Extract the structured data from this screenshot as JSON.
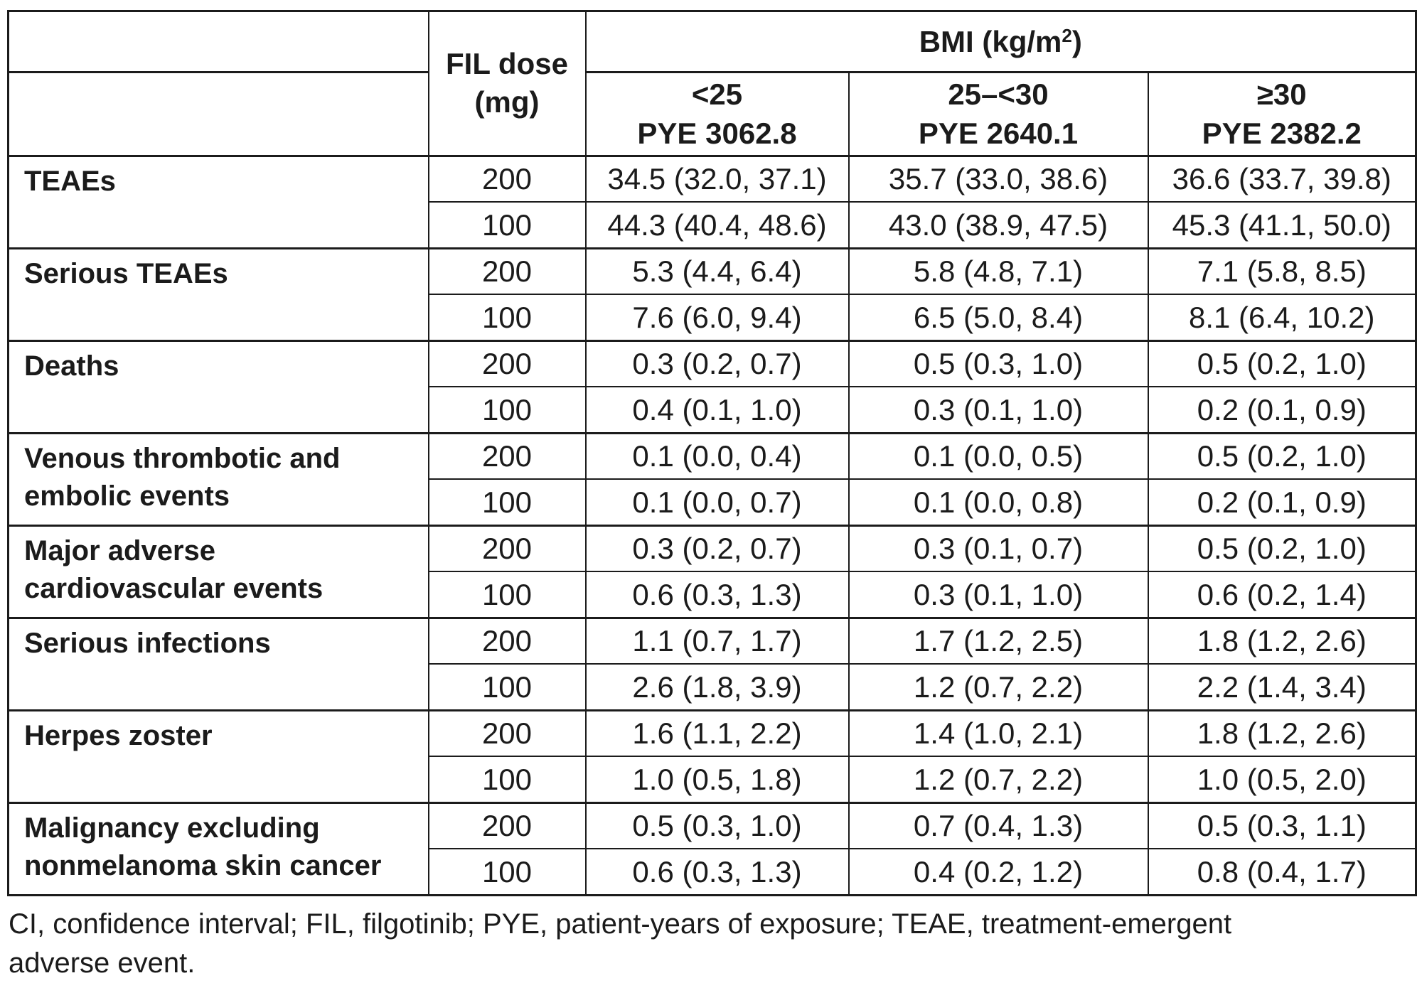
{
  "table": {
    "fil_dose_header": "FIL dose (mg)",
    "bmi_header": {
      "prefix": "BMI (kg/m",
      "sup": "2",
      "suffix": ")"
    },
    "bmi_columns": [
      {
        "range": "<25",
        "pye": "PYE 3062.8"
      },
      {
        "range": "25–<30",
        "pye": "PYE 2640.1"
      },
      {
        "range": "≥30",
        "pye": "PYE 2382.2"
      }
    ],
    "rows": [
      {
        "label": "TEAEs",
        "doses": [
          {
            "dose": "200",
            "values": [
              "34.5 (32.0, 37.1)",
              "35.7 (33.0, 38.6)",
              "36.6 (33.7, 39.8)"
            ]
          },
          {
            "dose": "100",
            "values": [
              "44.3 (40.4, 48.6)",
              "43.0 (38.9, 47.5)",
              "45.3 (41.1, 50.0)"
            ]
          }
        ]
      },
      {
        "label": "Serious TEAEs",
        "doses": [
          {
            "dose": "200",
            "values": [
              "5.3 (4.4, 6.4)",
              "5.8 (4.8, 7.1)",
              "7.1 (5.8, 8.5)"
            ]
          },
          {
            "dose": "100",
            "values": [
              "7.6 (6.0, 9.4)",
              "6.5 (5.0, 8.4)",
              "8.1 (6.4, 10.2)"
            ]
          }
        ]
      },
      {
        "label": "Deaths",
        "doses": [
          {
            "dose": "200",
            "values": [
              "0.3 (0.2, 0.7)",
              "0.5 (0.3, 1.0)",
              "0.5 (0.2, 1.0)"
            ]
          },
          {
            "dose": "100",
            "values": [
              "0.4 (0.1, 1.0)",
              "0.3 (0.1, 1.0)",
              "0.2 (0.1, 0.9)"
            ]
          }
        ]
      },
      {
        "label": "Venous thrombotic and embolic events",
        "doses": [
          {
            "dose": "200",
            "values": [
              "0.1 (0.0, 0.4)",
              "0.1 (0.0, 0.5)",
              "0.5 (0.2, 1.0)"
            ]
          },
          {
            "dose": "100",
            "values": [
              "0.1 (0.0, 0.7)",
              "0.1 (0.0, 0.8)",
              "0.2 (0.1, 0.9)"
            ]
          }
        ]
      },
      {
        "label": "Major adverse cardiovascular events",
        "doses": [
          {
            "dose": "200",
            "values": [
              "0.3 (0.2, 0.7)",
              "0.3 (0.1, 0.7)",
              "0.5 (0.2, 1.0)"
            ]
          },
          {
            "dose": "100",
            "values": [
              "0.6 (0.3, 1.3)",
              "0.3 (0.1, 1.0)",
              "0.6 (0.2, 1.4)"
            ]
          }
        ]
      },
      {
        "label": "Serious infections",
        "doses": [
          {
            "dose": "200",
            "values": [
              "1.1 (0.7, 1.7)",
              "1.7 (1.2, 2.5)",
              "1.8 (1.2, 2.6)"
            ]
          },
          {
            "dose": "100",
            "values": [
              "2.6 (1.8, 3.9)",
              "1.2 (0.7, 2.2)",
              "2.2 (1.4, 3.4)"
            ]
          }
        ]
      },
      {
        "label": "Herpes zoster",
        "doses": [
          {
            "dose": "200",
            "values": [
              "1.6 (1.1, 2.2)",
              "1.4 (1.0, 2.1)",
              "1.8 (1.2, 2.6)"
            ]
          },
          {
            "dose": "100",
            "values": [
              "1.0 (0.5, 1.8)",
              "1.2 (0.7, 2.2)",
              "1.0 (0.5, 2.0)"
            ]
          }
        ]
      },
      {
        "label": "Malignancy excluding nonmelanoma skin cancer",
        "doses": [
          {
            "dose": "200",
            "values": [
              "0.5 (0.3, 1.0)",
              "0.7 (0.4, 1.3)",
              "0.5 (0.3, 1.1)"
            ]
          },
          {
            "dose": "100",
            "values": [
              "0.6 (0.3, 1.3)",
              "0.4 (0.2, 1.2)",
              "0.8 (0.4, 1.7)"
            ]
          }
        ]
      }
    ]
  },
  "footnote_lines": [
    "CI, confidence interval; FIL, filgotinib; PYE, patient-years of exposure; TEAE, treatment-emergent",
    "adverse event."
  ],
  "colors": {
    "text": "#1b1b1b",
    "border": "#1b1b1b",
    "background": "#ffffff"
  }
}
